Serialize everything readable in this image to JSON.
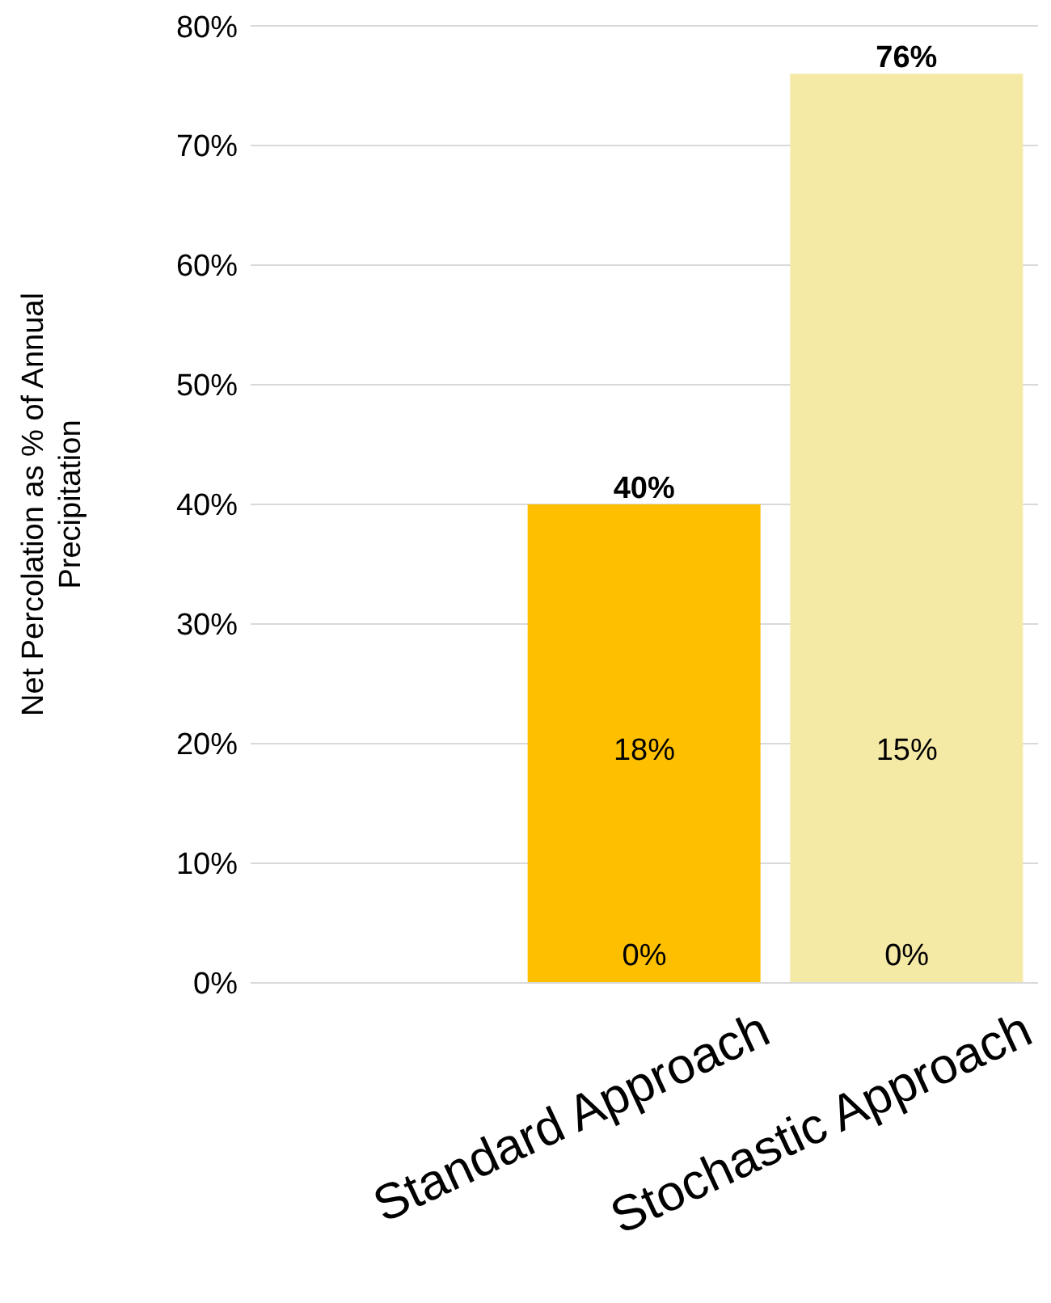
{
  "chart_data": {
    "type": "bar",
    "ylabel": "Net Percolation as % of Annual\nPrecipitation",
    "categories": [
      null,
      "Standard Approach",
      "Stochastic Approach"
    ],
    "values": [
      null,
      40,
      76
    ],
    "colors": [
      "#fdbf00",
      "#fdbf00",
      "#f5e9a6"
    ],
    "value_labels": [
      null,
      "40%",
      "76%"
    ],
    "ylim": [
      0,
      80
    ],
    "yticks": [
      {
        "value": 0,
        "label": "0%"
      },
      {
        "value": 10,
        "label": "10%"
      },
      {
        "value": 20,
        "label": "20%"
      },
      {
        "value": 30,
        "label": "30%"
      },
      {
        "value": 40,
        "label": "40%"
      },
      {
        "value": 50,
        "label": "50%"
      },
      {
        "value": 60,
        "label": "60%"
      },
      {
        "value": 70,
        "label": "70%"
      },
      {
        "value": 80,
        "label": "80%"
      }
    ],
    "grid": "y",
    "annotations": [
      "18%",
      "15%",
      "0%",
      "0%"
    ]
  }
}
